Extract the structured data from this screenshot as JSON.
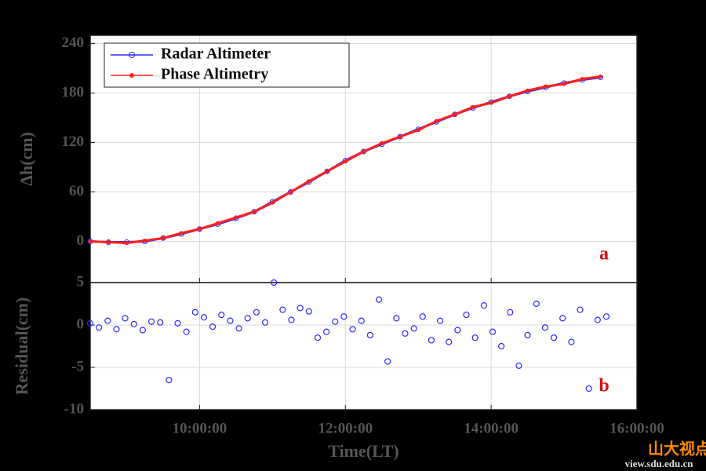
{
  "chart_data": [
    {
      "type": "line",
      "ylabel": "Δh(cm)",
      "annotation": "a",
      "x": [
        8.5,
        8.75,
        9,
        9.25,
        9.5,
        9.75,
        10,
        10.25,
        10.5,
        10.75,
        11,
        11.25,
        11.5,
        11.75,
        12,
        12.25,
        12.5,
        12.75,
        13,
        13.25,
        13.5,
        13.75,
        14,
        14.25,
        14.5,
        14.75,
        15,
        15.25,
        15.5
      ],
      "series": [
        {
          "name": "Radar Altimeter",
          "color": "#2b2bff",
          "marker": "circle",
          "values": [
            0,
            -1,
            -1,
            0,
            4,
            9,
            15,
            21,
            28,
            36,
            48,
            60,
            72,
            85,
            98,
            109,
            118,
            127,
            136,
            145,
            154,
            162,
            169,
            176,
            182,
            187,
            192,
            196,
            199
          ]
        },
        {
          "name": "Phase Altimetry",
          "color": "#ff2020",
          "marker": "dot",
          "values": [
            0,
            -1,
            -2,
            1,
            4,
            10,
            15,
            22,
            29,
            36,
            47,
            60,
            73,
            85,
            97,
            109,
            119,
            127,
            135,
            146,
            154,
            163,
            168,
            176,
            183,
            188,
            191,
            197,
            200
          ]
        }
      ],
      "xlim": [
        8.5,
        16
      ],
      "xticks": [
        {
          "value": 10,
          "label": "10:00:00"
        },
        {
          "value": 12,
          "label": "12:00:00"
        },
        {
          "value": 14,
          "label": "14:00:00"
        },
        {
          "value": 16,
          "label": "16:00:00"
        }
      ],
      "ylim": [
        -50,
        250
      ],
      "yticks": [
        0,
        60,
        120,
        180,
        240
      ],
      "grid": true,
      "legend": "upper left"
    },
    {
      "type": "scatter",
      "ylabel": "Residual(cm)",
      "xlabel": "Time(LT)",
      "annotation": "b",
      "x": [
        8.5,
        8.62,
        8.74,
        8.86,
        8.98,
        9.1,
        9.22,
        9.34,
        9.46,
        9.58,
        9.7,
        9.82,
        9.94,
        10.06,
        10.18,
        10.3,
        10.42,
        10.54,
        10.66,
        10.78,
        10.9,
        11.02,
        11.14,
        11.26,
        11.38,
        11.5,
        11.62,
        11.74,
        11.86,
        11.98,
        12.1,
        12.22,
        12.34,
        12.46,
        12.58,
        12.7,
        12.82,
        12.94,
        13.06,
        13.18,
        13.3,
        13.42,
        13.54,
        13.66,
        13.78,
        13.9,
        14.02,
        14.14,
        14.26,
        14.38,
        14.5,
        14.62,
        14.74,
        14.86,
        14.98,
        15.1,
        15.22,
        15.34,
        15.46,
        15.58
      ],
      "values": [
        0.2,
        -0.3,
        0.5,
        -0.5,
        0.8,
        0.1,
        -0.6,
        0.4,
        0.3,
        -6.5,
        0.2,
        -0.8,
        1.5,
        0.9,
        -0.2,
        1.2,
        0.5,
        -0.4,
        0.8,
        1.5,
        0.3,
        5,
        1.8,
        0.6,
        2.0,
        1.6,
        -1.5,
        -0.8,
        0.4,
        1.0,
        -0.5,
        0.5,
        -1.2,
        3.0,
        -4.3,
        0.8,
        -1.0,
        -0.4,
        1.0,
        -1.8,
        0.5,
        -2.0,
        -0.6,
        1.2,
        -1.5,
        2.3,
        -0.8,
        -2.5,
        1.5,
        -4.8,
        -1.2,
        2.5,
        -0.3,
        -1.5,
        0.8,
        -2.0,
        1.8,
        -7.5,
        0.6,
        1.0
      ],
      "color": "#2b2bff",
      "xlim": [
        8.5,
        16
      ],
      "xticks": [
        {
          "value": 10,
          "label": "10:00:00"
        },
        {
          "value": 12,
          "label": "12:00:00"
        },
        {
          "value": 14,
          "label": "14:00:00"
        },
        {
          "value": 16,
          "label": "16:00:00"
        }
      ],
      "ylim": [
        -10,
        5
      ],
      "yticks": [
        -10,
        -5,
        0,
        5
      ],
      "grid": true
    }
  ],
  "watermark": {
    "title": "山大视点",
    "url": "view.sdu.edu.cn"
  }
}
